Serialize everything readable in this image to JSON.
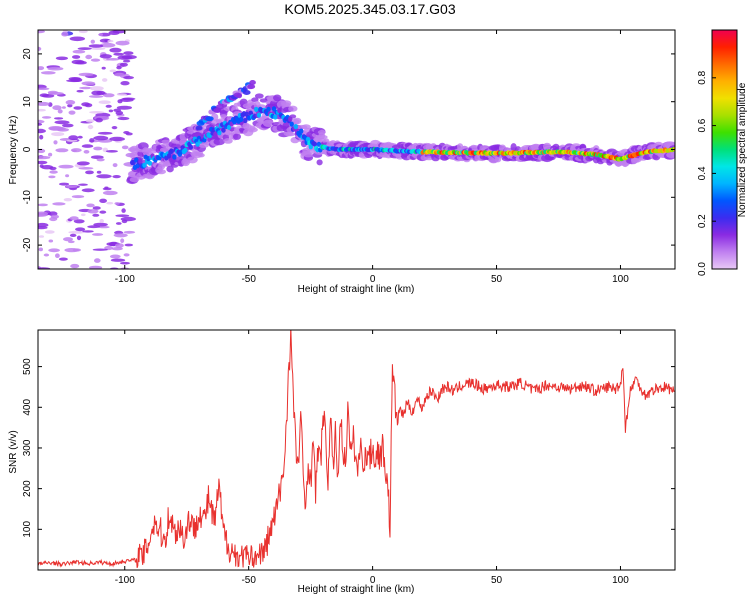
{
  "title": "KOM5.2025.345.03.17.G03",
  "chart_data": [
    {
      "type": "heatmap",
      "xlabel": "Height of straight line (km)",
      "ylabel": "Frequency (Hz)",
      "xlim": [
        -135,
        122
      ],
      "ylim": [
        -25,
        25
      ],
      "xticks": [
        -100,
        -50,
        0,
        50,
        100
      ],
      "yticks": [
        -20,
        -10,
        0,
        10,
        20
      ],
      "colorbar": {
        "label": "Normalized spectral amplitude",
        "range": [
          0,
          1
        ],
        "ticks": [
          0.0,
          0.2,
          0.4,
          0.6,
          0.8
        ],
        "tick_labels": [
          "0.0",
          "0.2",
          "0.4",
          "0.6",
          "0.8"
        ],
        "colors": [
          "#e8c8f6",
          "#c080f0",
          "#8a2be2",
          "#3b2cf0",
          "#0057ff",
          "#00b4ff",
          "#00e6e6",
          "#00e07a",
          "#3ee000",
          "#a8e000",
          "#f0e000",
          "#ffb000",
          "#ff6a00",
          "#ff2000",
          "#f00050"
        ]
      },
      "ridge": {
        "x": [
          -95,
          -88,
          -80,
          -70,
          -63,
          -55,
          -45,
          -38,
          -32,
          -25,
          -15,
          0,
          20,
          50,
          75,
          90,
          100,
          110,
          122
        ],
        "y": [
          -3,
          -2,
          -1,
          2,
          4,
          6,
          8,
          7.5,
          5,
          1,
          0,
          0,
          -0.5,
          -0.8,
          -0.5,
          -1,
          -2,
          -0.5,
          0
        ]
      },
      "upper_branch": {
        "x": [
          -70,
          -62,
          -57,
          -52,
          -48
        ],
        "y": [
          5,
          9,
          11,
          12,
          14
        ]
      }
    },
    {
      "type": "line",
      "xlabel": "Height of straight line (km)",
      "ylabel": "SNR (v/v)",
      "xlim": [
        -135,
        122
      ],
      "ylim": [
        0,
        590
      ],
      "xticks": [
        -100,
        -50,
        0,
        50,
        100
      ],
      "yticks": [
        100,
        200,
        300,
        400,
        500
      ],
      "series": [
        {
          "name": "SNR",
          "color": "#e8312e",
          "x": [
            -135,
            -130,
            -125,
            -120,
            -115,
            -110,
            -105,
            -100,
            -95,
            -92,
            -90,
            -88,
            -86,
            -84,
            -82,
            -80,
            -78,
            -76,
            -74,
            -72,
            -70,
            -68,
            -66,
            -64,
            -62,
            -60,
            -58,
            -56,
            -54,
            -52,
            -50,
            -48,
            -46,
            -44,
            -42,
            -40,
            -38,
            -36,
            -35,
            -34,
            -33,
            -32,
            -31,
            -30,
            -29,
            -28,
            -27,
            -26,
            -25,
            -24,
            -23,
            -22,
            -21,
            -20,
            -19,
            -18,
            -17,
            -16,
            -15,
            -14,
            -13,
            -12,
            -11,
            -10,
            -9,
            -8,
            -7,
            -6,
            -5,
            -4,
            -3,
            -2,
            -1,
            0,
            1,
            2,
            3,
            4,
            5,
            6,
            7,
            8,
            9,
            10,
            11,
            12,
            14,
            16,
            18,
            20,
            22,
            24,
            26,
            28,
            30,
            33,
            36,
            40,
            45,
            50,
            55,
            60,
            65,
            70,
            75,
            80,
            85,
            90,
            95,
            98,
            100,
            101,
            102,
            104,
            106,
            110,
            114,
            118,
            122
          ],
          "y": [
            15,
            18,
            14,
            20,
            16,
            19,
            15,
            22,
            25,
            40,
            80,
            120,
            100,
            70,
            140,
            90,
            110,
            75,
            130,
            95,
            150,
            120,
            180,
            110,
            200,
            85,
            60,
            40,
            30,
            28,
            25,
            30,
            45,
            40,
            80,
            120,
            170,
            240,
            340,
            470,
            580,
            420,
            300,
            250,
            390,
            220,
            150,
            280,
            200,
            350,
            180,
            300,
            260,
            390,
            320,
            230,
            360,
            260,
            330,
            230,
            380,
            300,
            260,
            400,
            270,
            330,
            290,
            240,
            300,
            280,
            270,
            290,
            280,
            300,
            270,
            290,
            280,
            300,
            260,
            220,
            110,
            500,
            420,
            360,
            400,
            380,
            410,
            390,
            420,
            400,
            430,
            440,
            420,
            445,
            450,
            440,
            455,
            460,
            445,
            455,
            450,
            460,
            440,
            455,
            450,
            445,
            455,
            440,
            450,
            445,
            460,
            500,
            350,
            440,
            470,
            430,
            445,
            450,
            440
          ]
        }
      ]
    }
  ]
}
